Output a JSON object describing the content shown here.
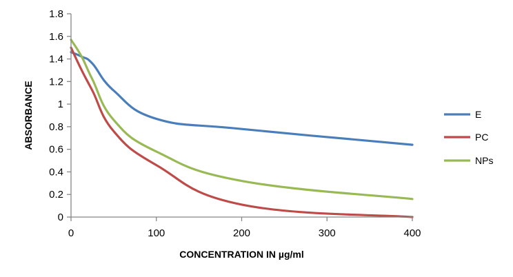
{
  "chart_data": {
    "type": "line",
    "title": "",
    "xlabel": "CONCENTRATION IN µg/ml",
    "ylabel": "ABSORBANCE",
    "xlim": [
      0,
      400
    ],
    "ylim": [
      0,
      1.8
    ],
    "x_ticks": [
      0,
      100,
      200,
      300,
      400
    ],
    "y_ticks": [
      0,
      0.2,
      0.4,
      0.6,
      0.8,
      1,
      1.2,
      1.4,
      1.6,
      1.8
    ],
    "x_tick_labels": [
      "0",
      "100",
      "200",
      "300",
      "400"
    ],
    "y_tick_labels": [
      "0",
      "0.2",
      "0.4",
      "0.6",
      "0.8",
      "1",
      "1.2",
      "1.4",
      "1.6",
      "1.8"
    ],
    "grid": false,
    "legend_position": "right",
    "series": [
      {
        "name": "E",
        "color": "#4a7ebb",
        "x": [
          0,
          12.5,
          25,
          50,
          100,
          200,
          400
        ],
        "y": [
          1.46,
          1.42,
          1.36,
          1.12,
          0.87,
          0.78,
          0.64
        ]
      },
      {
        "name": "PC",
        "color": "#be4b48",
        "x": [
          0,
          12.5,
          25,
          50,
          100,
          200,
          400
        ],
        "y": [
          1.5,
          1.3,
          1.12,
          0.76,
          0.46,
          0.11,
          0.0
        ]
      },
      {
        "name": "NPs",
        "color": "#98b954",
        "x": [
          0,
          12.5,
          25,
          50,
          100,
          200,
          400
        ],
        "y": [
          1.57,
          1.42,
          1.22,
          0.86,
          0.58,
          0.32,
          0.16
        ]
      }
    ]
  }
}
